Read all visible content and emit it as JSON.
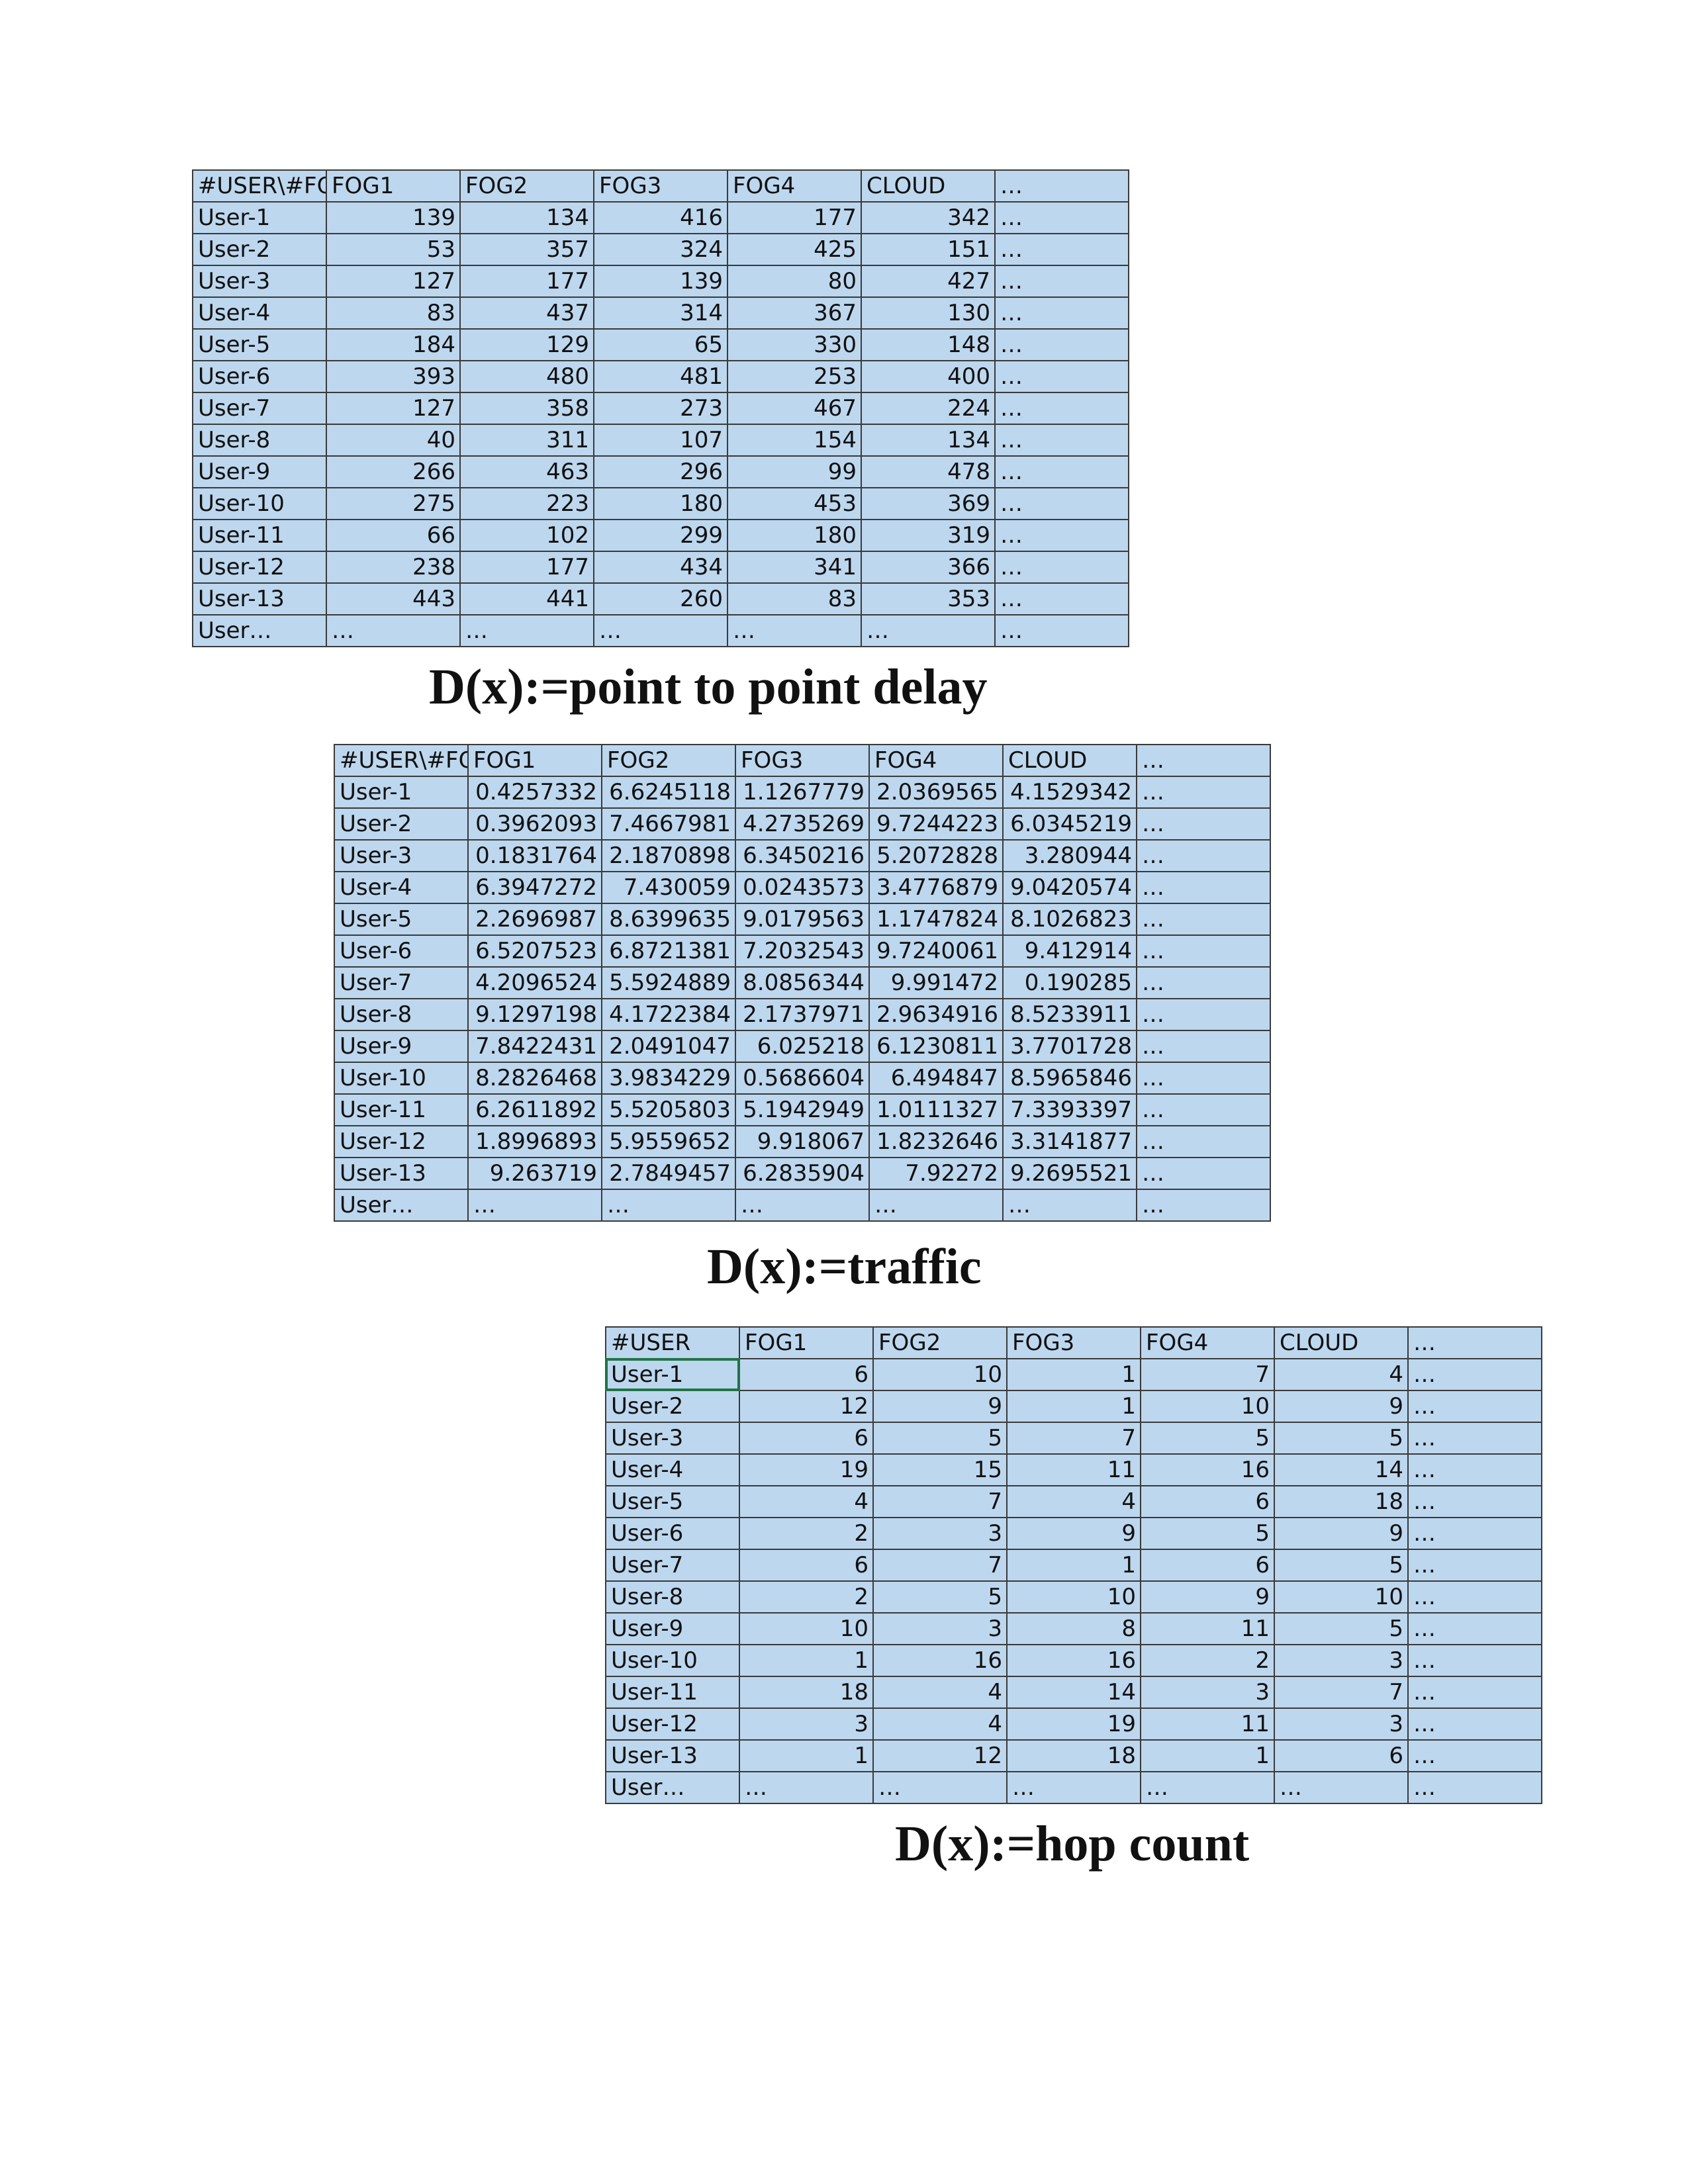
{
  "tables": [
    {
      "caption": "D(x):=point to point delay",
      "header": [
        "#USER\\#FOG",
        "FOG1",
        "FOG2",
        "FOG3",
        "FOG4",
        "CLOUD",
        "…"
      ],
      "rows": [
        [
          "User-1",
          "139",
          "134",
          "416",
          "177",
          "342",
          "…"
        ],
        [
          "User-2",
          "53",
          "357",
          "324",
          "425",
          "151",
          "…"
        ],
        [
          "User-3",
          "127",
          "177",
          "139",
          "80",
          "427",
          "…"
        ],
        [
          "User-4",
          "83",
          "437",
          "314",
          "367",
          "130",
          "…"
        ],
        [
          "User-5",
          "184",
          "129",
          "65",
          "330",
          "148",
          "…"
        ],
        [
          "User-6",
          "393",
          "480",
          "481",
          "253",
          "400",
          "…"
        ],
        [
          "User-7",
          "127",
          "358",
          "273",
          "467",
          "224",
          "…"
        ],
        [
          "User-8",
          "40",
          "311",
          "107",
          "154",
          "134",
          "…"
        ],
        [
          "User-9",
          "266",
          "463",
          "296",
          "99",
          "478",
          "…"
        ],
        [
          "User-10",
          "275",
          "223",
          "180",
          "453",
          "369",
          "…"
        ],
        [
          "User-11",
          "66",
          "102",
          "299",
          "180",
          "319",
          "…"
        ],
        [
          "User-12",
          "238",
          "177",
          "434",
          "341",
          "366",
          "…"
        ],
        [
          "User-13",
          "443",
          "441",
          "260",
          "83",
          "353",
          "…"
        ],
        [
          "User…",
          "…",
          "…",
          "…",
          "…",
          "…",
          "…"
        ]
      ]
    },
    {
      "caption": "D(x):=traffic",
      "header": [
        "#USER\\#FOG",
        "FOG1",
        "FOG2",
        "FOG3",
        "FOG4",
        "CLOUD",
        "…"
      ],
      "rows": [
        [
          "User-1",
          "0.4257332",
          "6.6245118",
          "1.1267779",
          "2.0369565",
          "4.1529342",
          "…"
        ],
        [
          "User-2",
          "0.3962093",
          "7.4667981",
          "4.2735269",
          "9.7244223",
          "6.0345219",
          "…"
        ],
        [
          "User-3",
          "0.1831764",
          "2.1870898",
          "6.3450216",
          "5.2072828",
          "3.280944",
          "…"
        ],
        [
          "User-4",
          "6.3947272",
          "7.430059",
          "0.0243573",
          "3.4776879",
          "9.0420574",
          "…"
        ],
        [
          "User-5",
          "2.2696987",
          "8.6399635",
          "9.0179563",
          "1.1747824",
          "8.1026823",
          "…"
        ],
        [
          "User-6",
          "6.5207523",
          "6.8721381",
          "7.2032543",
          "9.7240061",
          "9.412914",
          "…"
        ],
        [
          "User-7",
          "4.2096524",
          "5.5924889",
          "8.0856344",
          "9.991472",
          "0.190285",
          "…"
        ],
        [
          "User-8",
          "9.1297198",
          "4.1722384",
          "2.1737971",
          "2.9634916",
          "8.5233911",
          "…"
        ],
        [
          "User-9",
          "7.8422431",
          "2.0491047",
          "6.025218",
          "6.1230811",
          "3.7701728",
          "…"
        ],
        [
          "User-10",
          "8.2826468",
          "3.9834229",
          "0.5686604",
          "6.494847",
          "8.5965846",
          "…"
        ],
        [
          "User-11",
          "6.2611892",
          "5.5205803",
          "5.1942949",
          "1.0111327",
          "7.3393397",
          "…"
        ],
        [
          "User-12",
          "1.8996893",
          "5.9559652",
          "9.918067",
          "1.8232646",
          "3.3141877",
          "…"
        ],
        [
          "User-13",
          "9.263719",
          "2.7849457",
          "6.2835904",
          "7.92272",
          "9.2695521",
          "…"
        ],
        [
          "User…",
          "…",
          "…",
          "…",
          "…",
          "…",
          "…"
        ]
      ]
    },
    {
      "caption": "D(x):=hop count",
      "header": [
        "#USER",
        "FOG1",
        "FOG2",
        "FOG3",
        "FOG4",
        "CLOUD",
        "…"
      ],
      "rows": [
        [
          "User-1",
          "6",
          "10",
          "1",
          "7",
          "4",
          "…"
        ],
        [
          "User-2",
          "12",
          "9",
          "1",
          "10",
          "9",
          "…"
        ],
        [
          "User-3",
          "6",
          "5",
          "7",
          "5",
          "5",
          "…"
        ],
        [
          "User-4",
          "19",
          "15",
          "11",
          "16",
          "14",
          "…"
        ],
        [
          "User-5",
          "4",
          "7",
          "4",
          "6",
          "18",
          "…"
        ],
        [
          "User-6",
          "2",
          "3",
          "9",
          "5",
          "9",
          "…"
        ],
        [
          "User-7",
          "6",
          "7",
          "1",
          "6",
          "5",
          "…"
        ],
        [
          "User-8",
          "2",
          "5",
          "10",
          "9",
          "10",
          "…"
        ],
        [
          "User-9",
          "10",
          "3",
          "8",
          "11",
          "5",
          "…"
        ],
        [
          "User-10",
          "1",
          "16",
          "16",
          "2",
          "3",
          "…"
        ],
        [
          "User-11",
          "18",
          "4",
          "14",
          "3",
          "7",
          "…"
        ],
        [
          "User-12",
          "3",
          "4",
          "19",
          "11",
          "3",
          "…"
        ],
        [
          "User-13",
          "1",
          "12",
          "18",
          "1",
          "6",
          "…"
        ],
        [
          "User…",
          "…",
          "…",
          "…",
          "…",
          "…",
          "…"
        ]
      ]
    }
  ],
  "colors": {
    "cell_fill": "#bdd7ee",
    "grid_line": "#3a3a3a",
    "selection": "#217346"
  }
}
